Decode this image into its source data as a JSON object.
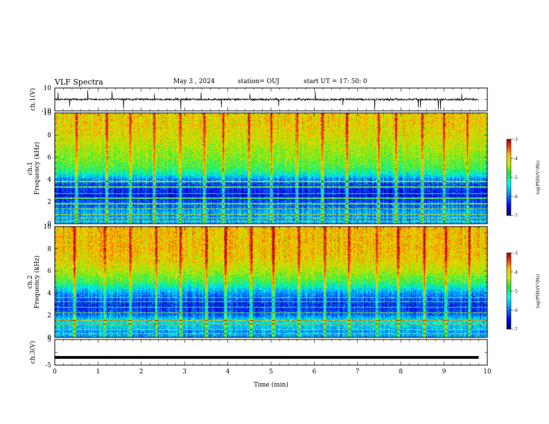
{
  "header": {
    "title": "VLF Spectra",
    "date": "May 3 , 2024",
    "station": "station= OUJ",
    "start": "start UT = 17: 50: 0"
  },
  "chart_data": [
    {
      "type": "line",
      "panel": "ch1-waveform",
      "ylabel": "ch.1(V)",
      "ylim": [
        -10,
        10
      ],
      "yticks": [
        "10",
        "-10"
      ],
      "xlim": [
        0,
        10
      ],
      "baseline": 0,
      "typical_amplitude": 1.5,
      "spikes": [
        {
          "x": 0.08,
          "y": 6
        },
        {
          "x": 0.35,
          "y": -6
        },
        {
          "x": 0.78,
          "y": 8
        },
        {
          "x": 1.35,
          "y": 7
        },
        {
          "x": 1.62,
          "y": -8
        },
        {
          "x": 2.35,
          "y": 5
        },
        {
          "x": 2.97,
          "y": -9
        },
        {
          "x": 3.45,
          "y": 6
        },
        {
          "x": 3.93,
          "y": -7
        },
        {
          "x": 4.6,
          "y": 5
        },
        {
          "x": 5.28,
          "y": -6
        },
        {
          "x": 6.15,
          "y": 7
        },
        {
          "x": 6.8,
          "y": -5
        },
        {
          "x": 7.55,
          "y": -9
        },
        {
          "x": 8.58,
          "y": -7
        },
        {
          "x": 8.63,
          "y": -7
        },
        {
          "x": 9.05,
          "y": -9
        },
        {
          "x": 9.1,
          "y": -9
        },
        {
          "x": 9.6,
          "y": 5
        }
      ],
      "color": "#000000"
    },
    {
      "type": "heatmap",
      "panel": "ch1-spectrogram",
      "ylabel": "ch.1 Frequency (kHz)",
      "xlim": [
        0,
        10
      ],
      "ylim": [
        0,
        10
      ],
      "yticks": [
        0,
        2,
        4,
        6,
        8,
        10
      ],
      "colorbar": {
        "label": "log(PSD)(V²/Hz)",
        "range": [
          -7,
          -3
        ],
        "ticks": [
          "-3",
          "-4",
          "-5",
          "-6",
          "-7"
        ]
      },
      "profile_khz": [
        0,
        0.5,
        1,
        1.5,
        2,
        2.5,
        3,
        3.5,
        4,
        4.5,
        5,
        6,
        7,
        8,
        9,
        10
      ],
      "profile_logpsd": [
        -5.6,
        -5.8,
        -5.7,
        -6.0,
        -6.2,
        -6.5,
        -6.4,
        -6.2,
        -5.9,
        -5.2,
        -4.8,
        -4.5,
        -4.3,
        -4.1,
        -4.0,
        -4.0
      ],
      "tone_lines_khz": [
        0.2,
        0.5,
        0.8,
        1.3,
        1.8,
        2.3,
        2.7,
        3.3,
        3.8
      ],
      "sferic_times_min": [
        0.5,
        1.2,
        1.75,
        2.3,
        2.9,
        3.45,
        3.9,
        4.5,
        5.0,
        5.6,
        6.2,
        6.75,
        7.5,
        7.9,
        8.5,
        9.0,
        9.55
      ]
    },
    {
      "type": "heatmap",
      "panel": "ch2-spectrogram",
      "ylabel": "ch.2 Frequency (kHz)",
      "xlim": [
        0,
        10
      ],
      "ylim": [
        0,
        10
      ],
      "yticks": [
        0,
        2,
        4,
        6,
        8,
        10
      ],
      "colorbar": {
        "label": "log(PSD)(V²/Hz)",
        "range": [
          -7,
          -3
        ],
        "ticks": [
          "-3",
          "-4",
          "-5",
          "-6",
          "-7"
        ]
      },
      "profile_khz": [
        0,
        0.5,
        1,
        1.5,
        2,
        2.5,
        3,
        3.5,
        4,
        4.5,
        5,
        6,
        7,
        8,
        9,
        10
      ],
      "profile_logpsd": [
        -5.7,
        -5.8,
        -5.5,
        -5.3,
        -6.0,
        -6.3,
        -6.3,
        -6.1,
        -5.8,
        -5.3,
        -4.8,
        -4.3,
        -4.0,
        -3.9,
        -3.9,
        -3.9
      ],
      "tone_lines_khz": [
        0.3,
        0.7,
        1.2,
        1.5,
        2.2,
        2.7,
        3.2,
        3.6
      ],
      "sferic_times_min": [
        0.45,
        1.15,
        1.75,
        2.35,
        2.9,
        3.5,
        3.95,
        4.55,
        5.05,
        5.65,
        6.25,
        6.8,
        7.45,
        7.95,
        8.55,
        9.05,
        9.6
      ]
    },
    {
      "type": "line",
      "panel": "ch3-waveform",
      "ylabel": "ch.3(V)",
      "ylim": [
        -5,
        5
      ],
      "yticks": [
        "5",
        "0",
        "-5"
      ],
      "xlim": [
        0,
        10
      ],
      "constant_value": -2,
      "color": "#000000"
    }
  ],
  "xaxis": {
    "label": "Time (min)",
    "ticks": [
      "0",
      "1",
      "2",
      "3",
      "4",
      "5",
      "6",
      "7",
      "8",
      "9",
      "10"
    ]
  }
}
